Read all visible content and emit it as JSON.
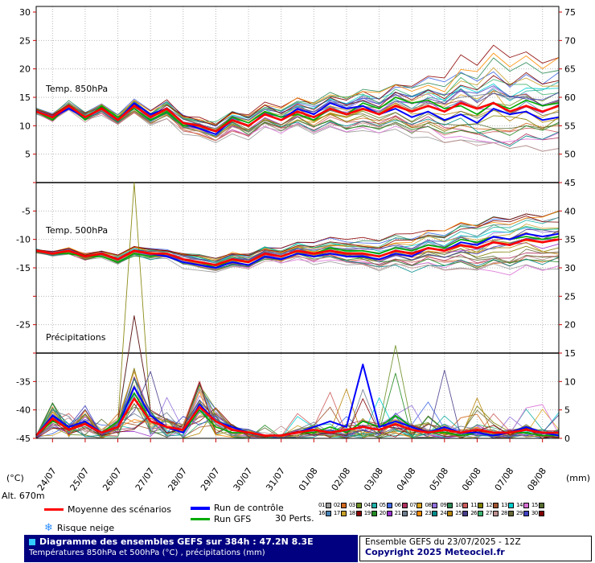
{
  "axis": {
    "unit_left": "(°C)",
    "unit_right": "(mm)",
    "alt_label": "Alt. 670m"
  },
  "panels": [
    {
      "label": "Temp. 850hPa"
    },
    {
      "label": "Temp. 500hPa"
    },
    {
      "label": "Précipitations"
    }
  ],
  "legend": {
    "mean_label": "Moyenne des scénarios",
    "control_label": "Run de contrôle",
    "gfs_label": "Run GFS",
    "perts_label": "30 Perts.",
    "snow_label": "Risque neige",
    "snow_icon": "❄",
    "members": [
      {
        "id": "01",
        "color": "#999999"
      },
      {
        "id": "02",
        "color": "#d2691e"
      },
      {
        "id": "03",
        "color": "#6b8e23"
      },
      {
        "id": "04",
        "color": "#20b2aa"
      },
      {
        "id": "05",
        "color": "#4169e1"
      },
      {
        "id": "06",
        "color": "#b03060"
      },
      {
        "id": "07",
        "color": "#daa520"
      },
      {
        "id": "08",
        "color": "#9370db"
      },
      {
        "id": "09",
        "color": "#2e8b57"
      },
      {
        "id": "10",
        "color": "#cd5c5c"
      },
      {
        "id": "11",
        "color": "#808000"
      },
      {
        "id": "12",
        "color": "#a0522d"
      },
      {
        "id": "13",
        "color": "#00ced1"
      },
      {
        "id": "14",
        "color": "#da70d6"
      },
      {
        "id": "15",
        "color": "#556b2f"
      },
      {
        "id": "16",
        "color": "#4682b4"
      },
      {
        "id": "17",
        "color": "#c8a028"
      },
      {
        "id": "18",
        "color": "#8b0000"
      },
      {
        "id": "19",
        "color": "#228b22"
      },
      {
        "id": "20",
        "color": "#9932cc"
      },
      {
        "id": "21",
        "color": "#708090"
      },
      {
        "id": "22",
        "color": "#ff8c00"
      },
      {
        "id": "23",
        "color": "#008b8b"
      },
      {
        "id": "24",
        "color": "#b8860b"
      },
      {
        "id": "25",
        "color": "#483d8b"
      },
      {
        "id": "26",
        "color": "#3cb371"
      },
      {
        "id": "27",
        "color": "#bc8f8f"
      },
      {
        "id": "28",
        "color": "#6b6b3a"
      },
      {
        "id": "29",
        "color": "#4040c0"
      },
      {
        "id": "30",
        "color": "#800000"
      }
    ]
  },
  "footer": {
    "title": "Diagramme des ensembles GEFS sur 384h : 47.2N 8.3E",
    "subtitle": "Températures 850hPa et 500hPa (°C) , précipitations (mm)",
    "run_info": "Ensemble GEFS du 23/07/2025 - 12Z",
    "copyright": "Copyright 2025 Meteociel.fr"
  },
  "colors": {
    "mean": "#ff0000",
    "control": "#0000ff",
    "gfs": "#00aa00",
    "grid": "#b8b8b8",
    "tick": "#cc0000",
    "separator": "#000000",
    "footer_bg": "#000080",
    "copyright_color": "#000080"
  },
  "chart_data": {
    "type": "line",
    "title": "Diagramme des ensembles GEFS sur 384h : 47.2N 8.3E",
    "x_hours": [
      0,
      12,
      24,
      36,
      48,
      60,
      72,
      84,
      96,
      108,
      120,
      132,
      144,
      156,
      168,
      180,
      192,
      204,
      216,
      228,
      240,
      252,
      264,
      276,
      288,
      300,
      312,
      324,
      336,
      348,
      360,
      372,
      384
    ],
    "x_tick_labels": [
      "24/07",
      "25/07",
      "26/07",
      "27/07",
      "28/07",
      "29/07",
      "30/07",
      "31/07",
      "01/08",
      "02/08",
      "03/08",
      "04/08",
      "05/08",
      "06/08",
      "07/08",
      "08/08"
    ],
    "left_axis": {
      "min": -45,
      "max": 30,
      "step": 5,
      "unit": "°C",
      "labels_skipped": [
        0,
        -20,
        -30
      ]
    },
    "right_axis": {
      "min": 0,
      "max": 75,
      "step": 5,
      "unit": "mm"
    },
    "grid": true,
    "legend_position": "bottom",
    "series": {
      "t850": {
        "name": "Temp. 850hPa",
        "mean": [
          12.5,
          11.5,
          13.5,
          11.5,
          13,
          11,
          13.5,
          11.5,
          13,
          10.5,
          10,
          9,
          11,
          10,
          12,
          11,
          12.5,
          11.5,
          13,
          12,
          13,
          12,
          13.5,
          12.5,
          13.5,
          12.5,
          14,
          13,
          14,
          12.5,
          13.5,
          12.5,
          13.5
        ],
        "control": [
          12.5,
          11.5,
          13,
          11.5,
          13,
          11,
          14,
          12,
          13,
          10.5,
          9.5,
          8.5,
          11,
          10,
          12,
          11,
          13,
          12,
          14,
          13,
          13.5,
          12,
          13,
          11.5,
          12.5,
          11,
          12,
          10.5,
          13,
          12,
          12.5,
          11,
          11.5
        ],
        "gfs": [
          12.5,
          11,
          13.5,
          11,
          13.5,
          11.5,
          13,
          11,
          12.5,
          10,
          10,
          9,
          11.5,
          10.5,
          12.5,
          11.5,
          12,
          11,
          13,
          12,
          14,
          13,
          15,
          14,
          14.5,
          13,
          13.5,
          12,
          14,
          13,
          14.5,
          13.5,
          14
        ],
        "env_min": [
          11,
          10,
          11.5,
          10,
          11,
          9.5,
          11,
          9.5,
          10.5,
          8.5,
          8,
          7,
          8.5,
          7.5,
          9.5,
          8.5,
          9.5,
          8.5,
          9.5,
          8.5,
          9,
          8,
          8.5,
          7.5,
          8,
          7,
          7.5,
          6.5,
          7,
          6,
          6.5,
          5.5,
          6
        ],
        "env_max": [
          14,
          13,
          15,
          13.5,
          15,
          13,
          16,
          14,
          15.5,
          13.5,
          13,
          12.5,
          14,
          13.5,
          15,
          14.5,
          16,
          15.5,
          17,
          16.5,
          17.5,
          17,
          18.5,
          18,
          20,
          19.5,
          23,
          21,
          25,
          22,
          23,
          21,
          22
        ]
      },
      "t500": {
        "name": "Temp. 500hPa",
        "mean": [
          -12,
          -12.5,
          -12,
          -13,
          -12.5,
          -13.5,
          -12,
          -12.5,
          -12.5,
          -13.5,
          -14,
          -14.5,
          -13.5,
          -14,
          -12.5,
          -13,
          -12,
          -12.5,
          -12,
          -12.5,
          -12.5,
          -13,
          -12,
          -12.5,
          -11.5,
          -12,
          -11,
          -11.5,
          -10.5,
          -11,
          -10,
          -10.5,
          -10
        ],
        "control": [
          -12,
          -12.5,
          -12,
          -13,
          -12.5,
          -13.5,
          -12,
          -12.5,
          -13,
          -14,
          -14.5,
          -15,
          -14,
          -14.5,
          -13,
          -13.5,
          -12.5,
          -13,
          -12.5,
          -13,
          -13,
          -13.5,
          -12.5,
          -13,
          -11.5,
          -12,
          -10.5,
          -11,
          -9.5,
          -10,
          -9,
          -9.5,
          -9
        ],
        "gfs": [
          -12,
          -12.5,
          -12.5,
          -13,
          -13,
          -14,
          -12.5,
          -13,
          -12.5,
          -13.5,
          -14,
          -15,
          -13.5,
          -14,
          -12.5,
          -13,
          -12,
          -12.5,
          -11.5,
          -12,
          -12,
          -12.5,
          -11.5,
          -12,
          -11,
          -11.5,
          -10,
          -10.5,
          -9.5,
          -10,
          -9.5,
          -10,
          -9.5
        ],
        "env_min": [
          -13,
          -13.5,
          -13,
          -14,
          -13.5,
          -15,
          -13.5,
          -14,
          -14,
          -15.5,
          -16,
          -16.5,
          -15.5,
          -16,
          -14.5,
          -15,
          -14,
          -15,
          -14.5,
          -15.5,
          -15,
          -16,
          -15,
          -16,
          -15,
          -16,
          -15.5,
          -16.5,
          -16,
          -17,
          -16.5,
          -17.5,
          -17
        ],
        "env_max": [
          -11,
          -11.5,
          -11,
          -12,
          -11.5,
          -12,
          -10.5,
          -11,
          -11,
          -11.5,
          -12,
          -12.5,
          -11.5,
          -12,
          -10.5,
          -11,
          -10,
          -10.5,
          -9.5,
          -10,
          -9.5,
          -10,
          -8.5,
          -9,
          -8,
          -8.5,
          -7,
          -7.5,
          -6,
          -6.5,
          -5.5,
          -6,
          -5
        ]
      },
      "precip": {
        "name": "Précipitations",
        "mean": [
          0.5,
          3.5,
          1.5,
          2.5,
          1,
          2,
          7,
          3,
          2,
          1.5,
          5.5,
          3,
          1.5,
          1,
          0.5,
          0.5,
          1,
          1.5,
          1,
          1.5,
          2,
          1.5,
          2.5,
          1.5,
          1,
          1.5,
          1,
          1.5,
          1,
          1,
          1.5,
          1,
          1
        ],
        "control": [
          0.5,
          4,
          2,
          3,
          1,
          2,
          9,
          4,
          2,
          1,
          6,
          3,
          2,
          1,
          0.5,
          0.5,
          1,
          2,
          3,
          2,
          13,
          2,
          3,
          2,
          1,
          2,
          1,
          1,
          0.5,
          1,
          2,
          1,
          0.5
        ],
        "gfs": [
          0.5,
          3,
          2,
          3,
          1,
          3,
          8,
          3,
          2,
          1,
          5,
          2,
          1,
          1,
          0.5,
          0.5,
          1,
          1,
          2,
          1,
          3,
          2,
          4,
          2,
          1,
          1,
          0.5,
          1,
          0.5,
          1,
          1,
          0.5,
          0.5
        ],
        "env_max": [
          2,
          9,
          5,
          8,
          4,
          7,
          45,
          12,
          8,
          6,
          16,
          10,
          6,
          4,
          3,
          3,
          6,
          8,
          13,
          10,
          20,
          12,
          20,
          10,
          8,
          14,
          6,
          8,
          6,
          10,
          16,
          8,
          6
        ]
      }
    }
  }
}
